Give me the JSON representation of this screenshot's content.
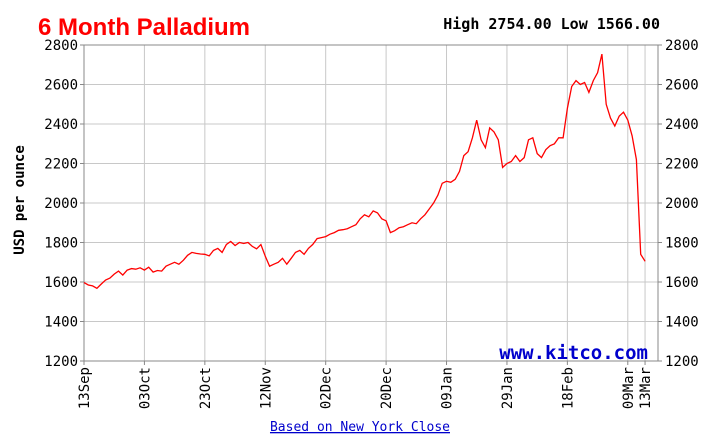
{
  "chart_data": {
    "type": "line",
    "title": "6 Month Palladium",
    "high_low_text": "High 2754.00 Low 1566.00",
    "ylabel": "USD per ounce",
    "ylim": [
      1200,
      2800
    ],
    "y_ticks": [
      1200,
      1400,
      1600,
      1800,
      2000,
      2200,
      2400,
      2600,
      2800
    ],
    "x_ticks": [
      {
        "label": "13Sep",
        "x": 0
      },
      {
        "label": "03Oct",
        "x": 14
      },
      {
        "label": "23Oct",
        "x": 28
      },
      {
        "label": "12Nov",
        "x": 42
      },
      {
        "label": "02Dec",
        "x": 56
      },
      {
        "label": "20Dec",
        "x": 70
      },
      {
        "label": "09Jan",
        "x": 84
      },
      {
        "label": "29Jan",
        "x": 98
      },
      {
        "label": "18Feb",
        "x": 112
      },
      {
        "label": "09Mar",
        "x": 126
      },
      {
        "label": "13Mar",
        "x": 130
      }
    ],
    "xlim": [
      0,
      133
    ],
    "grid": true,
    "line_color": "#ff0000",
    "watermark": "www.kitco.com",
    "footnote": "Based on New York Close",
    "series": [
      {
        "x": [
          0,
          1,
          2,
          3,
          4,
          5,
          6,
          7,
          8,
          9,
          10,
          11,
          12,
          13,
          14,
          15,
          16,
          17,
          18,
          19,
          20,
          21,
          22,
          23,
          24,
          25,
          26,
          27,
          28,
          29,
          30,
          31,
          32,
          33,
          34,
          35,
          36,
          37,
          38,
          39,
          40,
          41,
          42,
          43,
          44,
          45,
          46,
          47,
          48,
          49,
          50,
          51,
          52,
          53,
          54,
          55,
          56,
          57,
          58,
          59,
          60,
          61,
          62,
          63,
          64,
          65,
          66,
          67,
          68,
          69,
          70,
          71,
          72,
          73,
          74,
          75,
          76,
          77,
          78,
          79,
          80,
          81,
          82,
          83,
          84,
          85,
          86,
          87,
          88,
          89,
          90,
          91,
          92,
          93,
          94,
          95,
          96,
          97,
          98,
          99,
          100,
          101,
          102,
          103,
          104,
          105,
          106,
          107,
          108,
          109,
          110,
          111,
          112,
          113,
          114,
          115,
          116,
          117,
          118,
          119,
          120,
          121,
          122,
          123,
          124,
          125,
          126,
          127,
          128,
          129,
          130
        ],
        "values": [
          1597,
          1585,
          1580,
          1568,
          1590,
          1610,
          1620,
          1640,
          1655,
          1635,
          1660,
          1668,
          1665,
          1672,
          1660,
          1675,
          1650,
          1658,
          1655,
          1680,
          1690,
          1700,
          1690,
          1710,
          1735,
          1750,
          1745,
          1742,
          1740,
          1732,
          1760,
          1770,
          1750,
          1790,
          1805,
          1785,
          1800,
          1795,
          1800,
          1780,
          1768,
          1790,
          1730,
          1680,
          1690,
          1700,
          1720,
          1690,
          1720,
          1750,
          1760,
          1740,
          1770,
          1790,
          1820,
          1825,
          1830,
          1842,
          1850,
          1862,
          1865,
          1870,
          1880,
          1890,
          1920,
          1940,
          1930,
          1960,
          1950,
          1920,
          1910,
          1850,
          1860,
          1875,
          1880,
          1890,
          1900,
          1895,
          1920,
          1940,
          1970,
          2000,
          2040,
          2100,
          2110,
          2105,
          2120,
          2160,
          2240,
          2260,
          2330,
          2420,
          2320,
          2280,
          2380,
          2360,
          2320,
          2180,
          2200,
          2210,
          2240,
          2210,
          2230,
          2320,
          2330,
          2250,
          2230,
          2270,
          2290,
          2300,
          2330,
          2330,
          2480,
          2590,
          2620,
          2600,
          2610,
          2560,
          2620,
          2660,
          2754,
          2500,
          2430,
          2390,
          2440,
          2460,
          2420,
          2340,
          2220,
          1740,
          1705
        ]
      }
    ]
  }
}
